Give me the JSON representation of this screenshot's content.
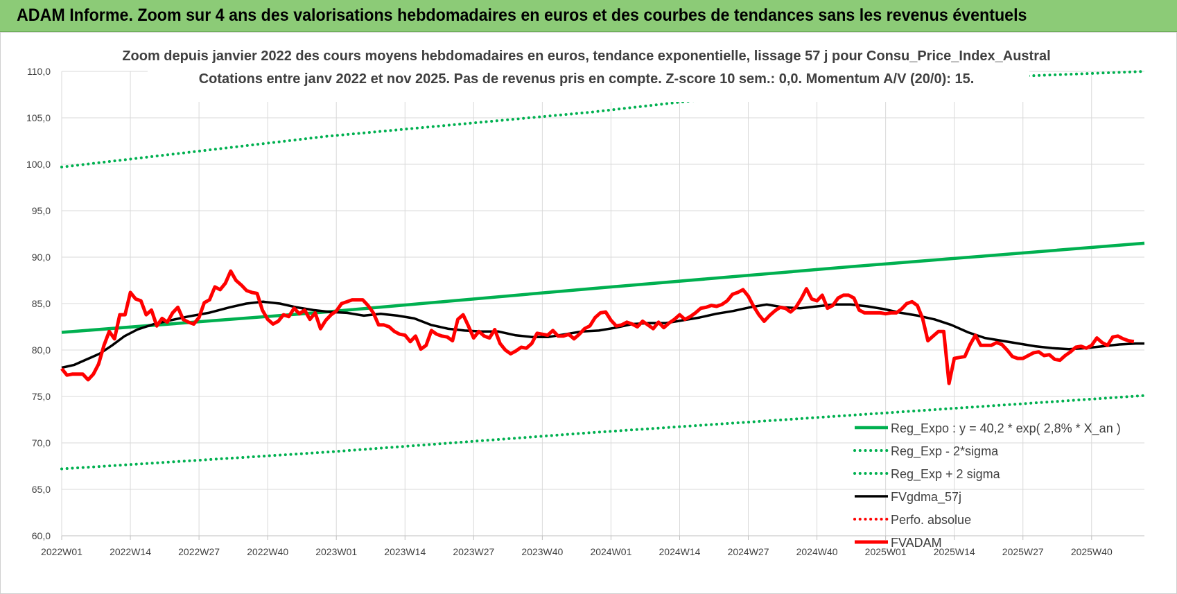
{
  "header": {
    "title": "ADAM Informe. Zoom sur 4 ans des valorisations hebdomadaires en euros et des courbes de tendances sans les revenus éventuels"
  },
  "colors": {
    "header_bg": "#8CCB77",
    "trend_green": "#00B050",
    "smooth_black": "#000000",
    "price_red": "#FF0000",
    "grid": "#D9D9D9"
  },
  "chart_data": {
    "type": "line",
    "title": "Zoom depuis janvier 2022 des cours moyens hebdomadaires en euros, tendance exponentielle, lissage 57 j pour Consu_Price_Index_Austral",
    "subtitle": "Cotations entre janv 2022 et nov 2025. Pas de revenus pris en compte. Z-score 10 sem.: 0,0. Momentum A/V (20/0): 15.",
    "xlabel": "",
    "ylabel": "",
    "ylim": [
      60,
      110
    ],
    "y_ticks": [
      "60,0",
      "65,0",
      "70,0",
      "75,0",
      "80,0",
      "85,0",
      "90,0",
      "95,0",
      "100,0",
      "105,0",
      "110,0"
    ],
    "x_tick_labels": [
      "2022W01",
      "2022W14",
      "2022W27",
      "2022W40",
      "2023W01",
      "2023W14",
      "2023W27",
      "2023W40",
      "2024W01",
      "2024W14",
      "2024W27",
      "2024W40",
      "2025W01",
      "2025W14",
      "2025W27",
      "2025W40"
    ],
    "x_tick_index": [
      0,
      13,
      26,
      39,
      52,
      65,
      78,
      91,
      104,
      117,
      130,
      143,
      156,
      169,
      182,
      195
    ],
    "n_points": 206,
    "grid": true,
    "legend_position": "bottom-right",
    "series": [
      {
        "name": "Reg_Expo : y = 40,2 * exp( 2,8% * X_an )",
        "style": "solid-thick",
        "color": "#00B050",
        "anchors": [
          [
            0,
            81.9
          ],
          [
            50,
            84.1
          ],
          [
            100,
            86.6
          ],
          [
            150,
            89.0
          ],
          [
            205,
            91.5
          ]
        ]
      },
      {
        "name": "Reg_Exp - 2*sigma",
        "style": "dotted",
        "color": "#00B050",
        "anchors": [
          [
            0,
            67.2
          ],
          [
            50,
            69.0
          ],
          [
            100,
            71.1
          ],
          [
            150,
            73.0
          ],
          [
            205,
            75.1
          ]
        ]
      },
      {
        "name": "Reg_Exp + 2 sigma",
        "style": "dotted",
        "color": "#00B050",
        "anchors": [
          [
            0,
            99.7
          ],
          [
            50,
            103.0
          ],
          [
            100,
            105.6
          ],
          [
            150,
            108.8
          ],
          [
            205,
            110.0
          ]
        ]
      },
      {
        "name": "FVgdma_57j",
        "style": "solid",
        "color": "#000000",
        "anchors": [
          [
            0,
            78.1
          ],
          [
            3,
            78.4
          ],
          [
            6,
            79.0
          ],
          [
            9,
            79.6
          ],
          [
            12,
            80.5
          ],
          [
            15,
            81.5
          ],
          [
            18,
            82.2
          ],
          [
            22,
            82.8
          ],
          [
            26,
            83.2
          ],
          [
            30,
            83.6
          ],
          [
            35,
            84.0
          ],
          [
            40,
            84.6
          ],
          [
            44,
            85.0
          ],
          [
            48,
            85.2
          ],
          [
            52,
            85.0
          ],
          [
            56,
            84.6
          ],
          [
            60,
            84.3
          ],
          [
            64,
            84.1
          ],
          [
            68,
            84.0
          ],
          [
            72,
            83.7
          ],
          [
            76,
            83.9
          ],
          [
            80,
            83.7
          ],
          [
            84,
            83.4
          ],
          [
            88,
            82.7
          ],
          [
            92,
            82.3
          ],
          [
            96,
            82.1
          ],
          [
            100,
            82.0
          ],
          [
            104,
            82.0
          ],
          [
            108,
            81.6
          ],
          [
            112,
            81.4
          ],
          [
            116,
            81.4
          ],
          [
            120,
            81.7
          ],
          [
            124,
            82.0
          ],
          [
            128,
            82.1
          ],
          [
            132,
            82.4
          ],
          [
            136,
            82.8
          ],
          [
            140,
            82.9
          ],
          [
            144,
            82.9
          ],
          [
            148,
            83.2
          ],
          [
            152,
            83.5
          ],
          [
            156,
            83.9
          ],
          [
            160,
            84.2
          ],
          [
            164,
            84.6
          ],
          [
            168,
            84.9
          ],
          [
            172,
            84.6
          ],
          [
            176,
            84.5
          ],
          [
            180,
            84.7
          ],
          [
            184,
            84.9
          ],
          [
            188,
            84.9
          ],
          [
            192,
            84.7
          ],
          [
            196,
            84.4
          ],
          [
            200,
            84.0
          ],
          [
            204,
            83.7
          ],
          [
            208,
            83.3
          ],
          [
            212,
            82.7
          ],
          [
            216,
            81.9
          ],
          [
            220,
            81.3
          ],
          [
            224,
            81.0
          ],
          [
            228,
            80.7
          ],
          [
            232,
            80.4
          ],
          [
            236,
            80.2
          ],
          [
            240,
            80.1
          ],
          [
            244,
            80.2
          ],
          [
            248,
            80.4
          ],
          [
            252,
            80.6
          ],
          [
            256,
            80.7
          ],
          [
            258,
            80.7
          ]
        ]
      },
      {
        "name": "Perfo. absolue",
        "style": "dotted",
        "color": "#FF0000",
        "anchors": []
      },
      {
        "name": "FVADAM",
        "style": "solid-thick",
        "color": "#FF0000",
        "values": [
          78.0,
          77.3,
          77.4,
          77.4,
          77.4,
          76.8,
          77.4,
          78.5,
          80.5,
          82.0,
          81.2,
          83.8,
          83.8,
          86.2,
          85.5,
          85.3,
          83.8,
          84.3,
          82.6,
          83.4,
          83.0,
          84.0,
          84.6,
          83.3,
          83.0,
          82.8,
          83.5,
          85.1,
          85.4,
          86.8,
          86.5,
          87.2,
          88.5,
          87.5,
          87.0,
          86.4,
          86.2,
          86.1,
          84.3,
          83.3,
          82.8,
          83.1,
          83.8,
          83.6,
          84.5,
          83.9,
          84.3,
          83.3,
          84.0,
          82.3,
          83.2,
          83.8,
          84.2,
          85.0,
          85.2,
          85.4,
          85.4,
          85.4,
          84.8,
          84.0,
          82.7,
          82.7,
          82.5,
          82.0,
          81.7,
          81.6,
          80.9,
          81.5,
          80.1,
          80.5,
          82.1,
          81.7,
          81.5,
          81.4,
          81.0,
          83.3,
          83.8,
          82.6,
          81.3,
          82.0,
          81.5,
          81.3,
          82.2,
          80.7,
          80.0,
          79.6,
          79.9,
          80.3,
          80.2,
          80.7,
          81.8,
          81.7,
          81.6,
          82.1,
          81.5,
          81.5,
          81.7,
          81.2,
          81.7,
          82.3,
          82.6,
          83.5,
          84.0,
          84.1,
          83.2,
          82.6,
          82.7,
          83.0,
          82.8,
          82.5,
          83.1,
          82.7,
          82.3,
          83.0,
          82.4,
          82.9,
          83.3,
          83.8,
          83.3,
          83.6,
          84.0,
          84.5,
          84.6,
          84.8,
          84.7,
          84.9,
          85.3,
          86.0,
          86.2,
          86.5,
          85.8,
          84.7,
          83.8,
          83.1,
          83.7,
          84.2,
          84.6,
          84.5,
          84.1,
          84.6,
          85.5,
          86.6,
          85.5,
          85.3,
          85.9,
          84.5,
          84.8,
          85.6,
          85.9,
          85.9,
          85.6,
          84.3,
          84.0,
          84.0,
          84.0,
          84.0,
          83.9,
          84.0,
          84.0,
          84.4,
          85.0,
          85.2,
          84.8,
          83.4,
          81.0,
          81.5,
          82.0,
          82.0,
          76.4,
          79.1,
          79.2,
          79.3,
          80.6,
          81.6,
          80.5,
          80.5,
          80.5,
          80.8,
          80.6,
          80.0,
          79.3,
          79.1,
          79.1,
          79.4,
          79.7,
          79.8,
          79.4,
          79.5,
          79.0,
          78.9,
          79.4,
          79.8,
          80.3,
          80.4,
          80.2,
          80.5,
          81.3,
          80.8,
          80.5,
          81.4,
          81.5,
          81.2,
          81.0,
          80.9
        ]
      }
    ]
  }
}
